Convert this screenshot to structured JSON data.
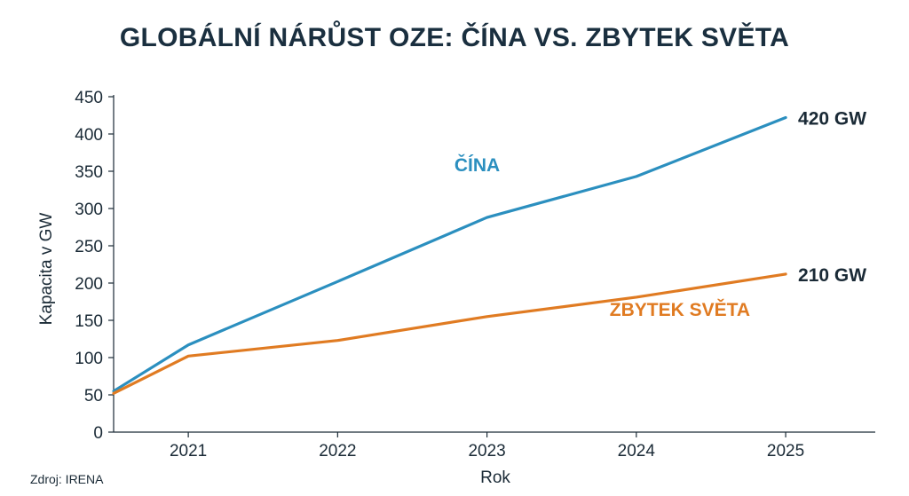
{
  "chart_data": {
    "type": "line",
    "title": "GLOBÁLNÍ NÁRŮST OZE: ČÍNA VS. ZBYTEK SVĚTA",
    "xlabel": "Rok",
    "ylabel": "Kapacita v GW",
    "x": [
      2020.5,
      2021,
      2022,
      2023,
      2024,
      2025
    ],
    "x_ticks": [
      "2021",
      "2022",
      "2023",
      "2024",
      "2025"
    ],
    "x_tick_values": [
      2021,
      2022,
      2023,
      2024,
      2025
    ],
    "xlim": [
      2020.5,
      2025.6
    ],
    "ylim": [
      0,
      450
    ],
    "y_ticks": [
      "0",
      "50",
      "100",
      "150",
      "200",
      "250",
      "300",
      "350",
      "400",
      "450"
    ],
    "y_tick_values": [
      0,
      50,
      100,
      150,
      200,
      250,
      300,
      350,
      400,
      450
    ],
    "grid": false,
    "series": [
      {
        "name": "ČÍNA",
        "color": "#2b8fbf",
        "values": [
          55,
          117,
          202,
          288,
          343,
          422
        ],
        "end_label": "420 GW"
      },
      {
        "name": "ZBYTEK SVĚTA",
        "color": "#e07b22",
        "values": [
          52,
          102,
          123,
          155,
          181,
          212
        ],
        "end_label": "210 GW"
      }
    ]
  },
  "source": "Zdroj: IRENA"
}
